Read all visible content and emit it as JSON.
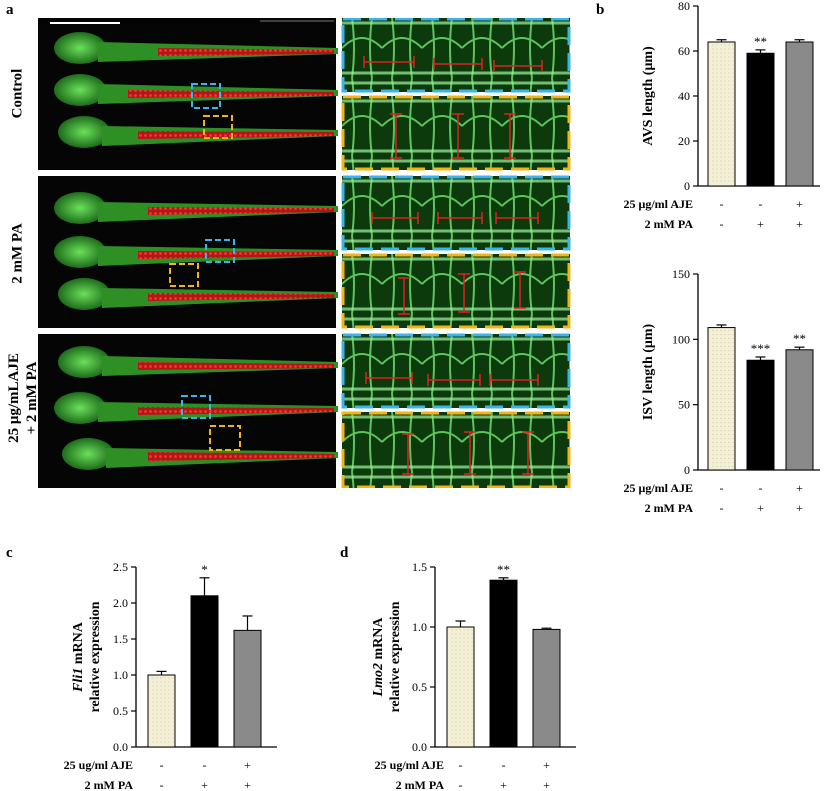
{
  "panels": {
    "a": {
      "letter": "a",
      "rows": [
        {
          "label_lines": [
            "Control"
          ]
        },
        {
          "label_lines": [
            "2 mM PA"
          ]
        },
        {
          "label_lines": [
            "25 μg/mLAJE",
            "+ 2 mM PA"
          ]
        }
      ]
    },
    "b": {
      "letter": "b"
    },
    "c": {
      "letter": "c"
    },
    "d": {
      "letter": "d"
    }
  },
  "chart_data": [
    {
      "id": "avs",
      "type": "bar",
      "ylabel": "AVS length (μm)",
      "ylim": [
        0,
        80
      ],
      "yticks": [
        "0",
        "20",
        "40",
        "60",
        "80"
      ],
      "categories": [
        "group1",
        "group2",
        "group3"
      ],
      "values": [
        64,
        59,
        64
      ],
      "errors": [
        1,
        1.5,
        1
      ],
      "significance": [
        "",
        "**",
        ""
      ],
      "bar_colors": [
        "#f4f0d6",
        "#000000",
        "#8a8a8a"
      ],
      "condition_rows": [
        {
          "label": "25 μg/ml AJE",
          "marks": [
            "-",
            "-",
            "+"
          ]
        },
        {
          "label": "2 mM PA",
          "marks": [
            "-",
            "+",
            "+"
          ]
        }
      ]
    },
    {
      "id": "isv",
      "type": "bar",
      "ylabel": "ISV length (μm)",
      "ylim": [
        0,
        150
      ],
      "yticks": [
        "0",
        "50",
        "100",
        "150"
      ],
      "categories": [
        "group1",
        "group2",
        "group3"
      ],
      "values": [
        109,
        84,
        92
      ],
      "errors": [
        2,
        2.5,
        2
      ],
      "significance": [
        "",
        "***",
        "**"
      ],
      "bar_colors": [
        "#f4f0d6",
        "#000000",
        "#8a8a8a"
      ],
      "condition_rows": [
        {
          "label": "25 μg/ml AJE",
          "marks": [
            "-",
            "-",
            "+"
          ]
        },
        {
          "label": "2 mM PA",
          "marks": [
            "-",
            "+",
            "+"
          ]
        }
      ]
    },
    {
      "id": "fli1",
      "type": "bar",
      "ylabel_italic": "Fli1",
      "ylabel_rest": " mRNA",
      "ylabel2": "relative expression",
      "ylim": [
        0,
        2.5
      ],
      "yticks": [
        "0.0",
        "0.5",
        "1.0",
        "1.5",
        "2.0",
        "2.5"
      ],
      "categories": [
        "group1",
        "group2",
        "group3"
      ],
      "values": [
        1.0,
        2.1,
        1.62
      ],
      "errors": [
        0.05,
        0.25,
        0.2
      ],
      "significance": [
        "",
        "*",
        ""
      ],
      "bar_colors": [
        "#f4f0d6",
        "#000000",
        "#8a8a8a"
      ],
      "condition_rows": [
        {
          "label": "25 ug/ml AJE",
          "marks": [
            "-",
            "-",
            "+"
          ]
        },
        {
          "label": "2 mM PA",
          "marks": [
            "-",
            "+",
            "+"
          ]
        }
      ]
    },
    {
      "id": "lmo2",
      "type": "bar",
      "ylabel_italic": "Lmo2",
      "ylabel_rest": " mRNA",
      "ylabel2": "relative expression",
      "ylim": [
        0,
        1.5
      ],
      "yticks": [
        "0.0",
        "0.5",
        "1.0",
        "1.5"
      ],
      "categories": [
        "group1",
        "group2",
        "group3"
      ],
      "values": [
        1.0,
        1.39,
        0.98
      ],
      "errors": [
        0.05,
        0.02,
        0.01
      ],
      "significance": [
        "",
        "**",
        ""
      ],
      "bar_colors": [
        "#f4f0d6",
        "#000000",
        "#8a8a8a"
      ],
      "condition_rows": [
        {
          "label": "25 ug/ml AJE",
          "marks": [
            "-",
            "-",
            "+"
          ]
        },
        {
          "label": "2 mM PA",
          "marks": [
            "-",
            "+",
            "+"
          ]
        }
      ]
    }
  ]
}
